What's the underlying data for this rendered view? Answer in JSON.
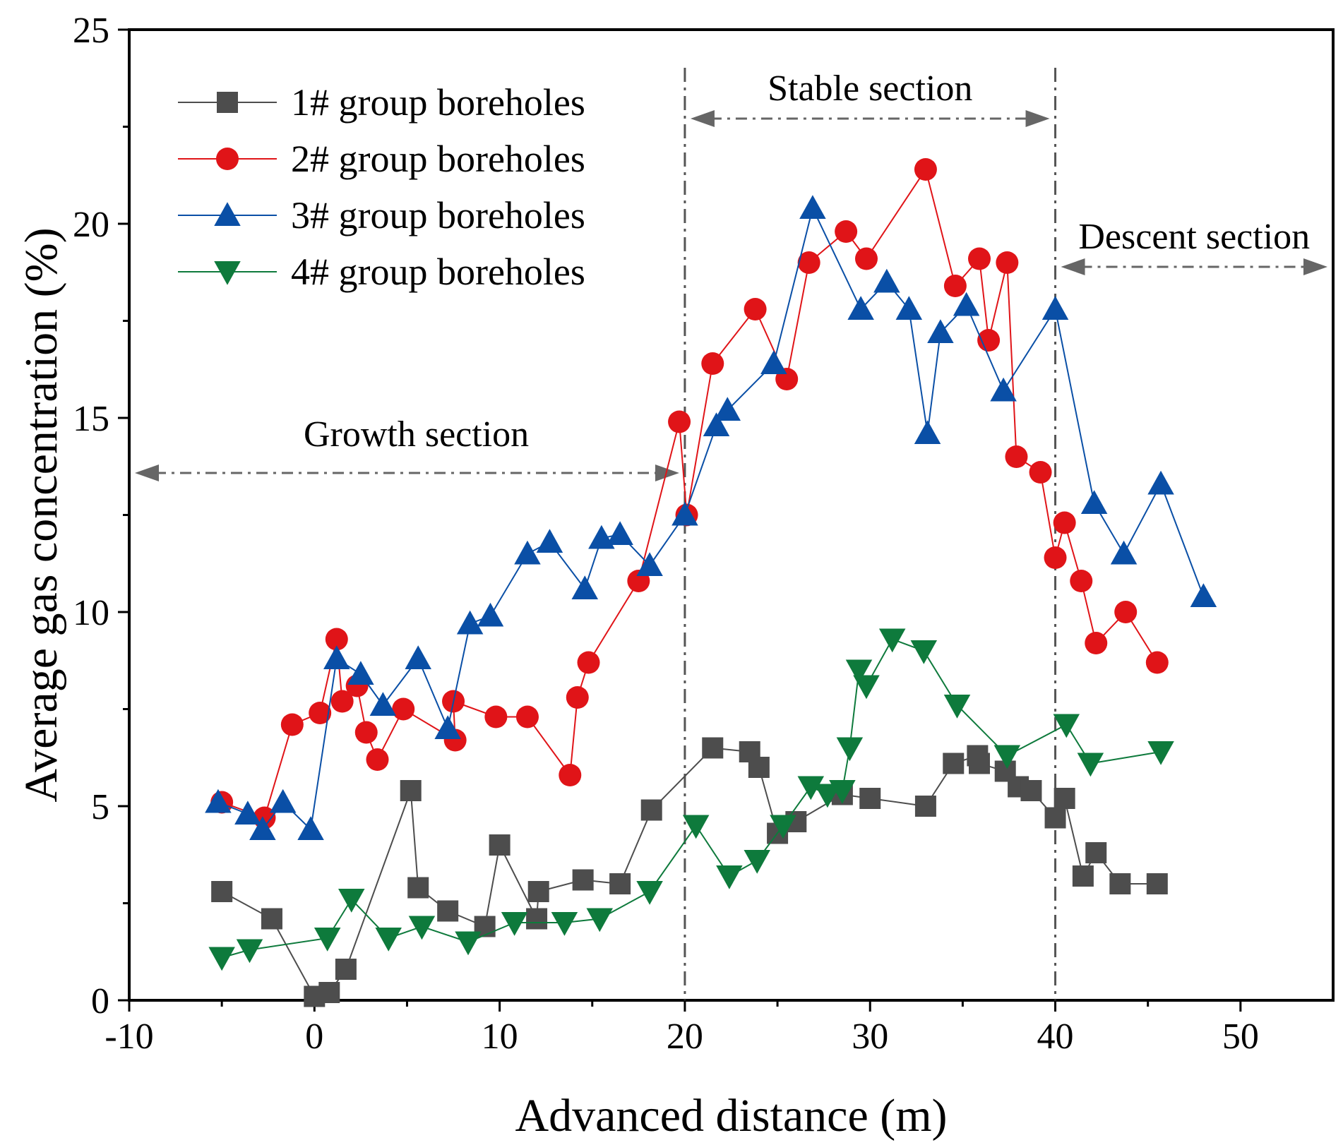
{
  "chart_data": {
    "type": "line",
    "title": "",
    "xlabel": "Advanced distance (m)",
    "ylabel": "Average gas concentration (%)",
    "xlim": [
      -10,
      55
    ],
    "ylim": [
      0,
      25
    ],
    "xticks": [
      -10,
      0,
      10,
      20,
      30,
      40,
      50
    ],
    "yticks": [
      0,
      5,
      10,
      15,
      20,
      25
    ],
    "grid": false,
    "legend_position": "top-left",
    "series": [
      {
        "name": "1# group boreholes",
        "color": "#4d4d4d",
        "marker": "square",
        "x": [
          -5,
          -2.3,
          0,
          0.8,
          1.7,
          5.2,
          5.6,
          7.2,
          9.2,
          10,
          12,
          12.1,
          14.5,
          16.5,
          18.2,
          21.5,
          23.5,
          24,
          25,
          26,
          28.5,
          30,
          33,
          34.5,
          35.8,
          35.9,
          37.3,
          38,
          38.7,
          40,
          40.5,
          41.5,
          42.2,
          43.5,
          45.5
        ],
        "y": [
          2.8,
          2.1,
          0.1,
          0.2,
          0.8,
          5.4,
          2.9,
          2.3,
          1.9,
          4,
          2.1,
          2.8,
          3.1,
          3,
          4.9,
          6.5,
          6.4,
          6,
          4.3,
          4.6,
          5.3,
          5.2,
          5,
          6.1,
          6.3,
          6.1,
          5.9,
          5.5,
          5.4,
          4.7,
          5.2,
          3.2,
          3.8,
          3,
          3
        ]
      },
      {
        "name": "2# group boreholes",
        "color": "#e01418",
        "marker": "circle",
        "x": [
          -5,
          -2.7,
          -1.2,
          0.3,
          1.2,
          1.5,
          2.3,
          2.8,
          3.4,
          4.8,
          7.6,
          7.5,
          9.8,
          11.5,
          13.8,
          14.2,
          14.8,
          17.5,
          19.7,
          20.1,
          21.5,
          23.8,
          25.5,
          26.7,
          28.7,
          29.8,
          33,
          34.6,
          35.9,
          36.4,
          37.4,
          37.9,
          39.2,
          40,
          40.5,
          41.4,
          42.2,
          43.8,
          45.5
        ],
        "y": [
          5.1,
          4.7,
          7.1,
          7.4,
          9.3,
          7.7,
          8.1,
          6.9,
          6.2,
          7.5,
          6.7,
          7.7,
          7.3,
          7.3,
          5.8,
          7.8,
          8.7,
          10.8,
          14.9,
          12.5,
          16.4,
          17.8,
          16,
          19,
          19.8,
          19.1,
          21.4,
          18.4,
          19.1,
          17,
          19,
          14,
          13.6,
          11.4,
          12.3,
          10.8,
          9.2,
          10,
          8.7
        ]
      },
      {
        "name": "3# group boreholes",
        "color": "#0a4fa6",
        "marker": "triangle-up",
        "x": [
          -5.2,
          -3.6,
          -2.8,
          -1.7,
          -0.2,
          1.2,
          2.5,
          3.7,
          5.6,
          7.2,
          8.4,
          9.5,
          11.5,
          12.7,
          14.6,
          15.5,
          16.5,
          18.1,
          20,
          21.7,
          22.3,
          24.8,
          26.9,
          29.5,
          30.9,
          32.1,
          33.1,
          33.8,
          35.2,
          37.2,
          40,
          42.1,
          43.7,
          45.7,
          48
        ],
        "y": [
          5.1,
          4.8,
          4.4,
          5.1,
          4.4,
          8.8,
          8.4,
          7.6,
          8.8,
          7,
          9.7,
          9.9,
          11.5,
          11.8,
          10.6,
          11.9,
          12,
          11.2,
          12.5,
          14.8,
          15.2,
          16.4,
          20.4,
          17.8,
          18.5,
          17.8,
          14.6,
          17.2,
          17.9,
          15.7,
          17.8,
          12.8,
          11.5,
          13.3,
          10.4
        ]
      },
      {
        "name": "4# group boreholes",
        "color": "#0e7a3c",
        "marker": "triangle-down",
        "x": [
          -5,
          -3.5,
          0.7,
          2,
          4,
          5.8,
          8.3,
          10.8,
          13.5,
          15.4,
          18.1,
          20.6,
          22.4,
          23.9,
          25.3,
          26.8,
          27.7,
          28.5,
          28.9,
          29.4,
          29.8,
          31.2,
          32.9,
          34.7,
          37.4,
          40.6,
          41.9,
          45.7
        ],
        "y": [
          1.1,
          1.3,
          1.6,
          2.6,
          1.6,
          1.9,
          1.5,
          2,
          2,
          2.1,
          2.8,
          4.5,
          3.2,
          3.6,
          4.5,
          5.5,
          5.3,
          5.4,
          6.5,
          8.5,
          8.1,
          9.3,
          9,
          7.6,
          6.3,
          7.1,
          6.1,
          6.4
        ]
      }
    ],
    "annotations": [
      {
        "text": "Growth section",
        "from": -10,
        "to": 20
      },
      {
        "text": "Stable section",
        "from": 20,
        "to": 40
      },
      {
        "text": "Descent section",
        "from": 40,
        "to": 55
      }
    ],
    "vertical_lines": [
      20,
      40
    ]
  }
}
